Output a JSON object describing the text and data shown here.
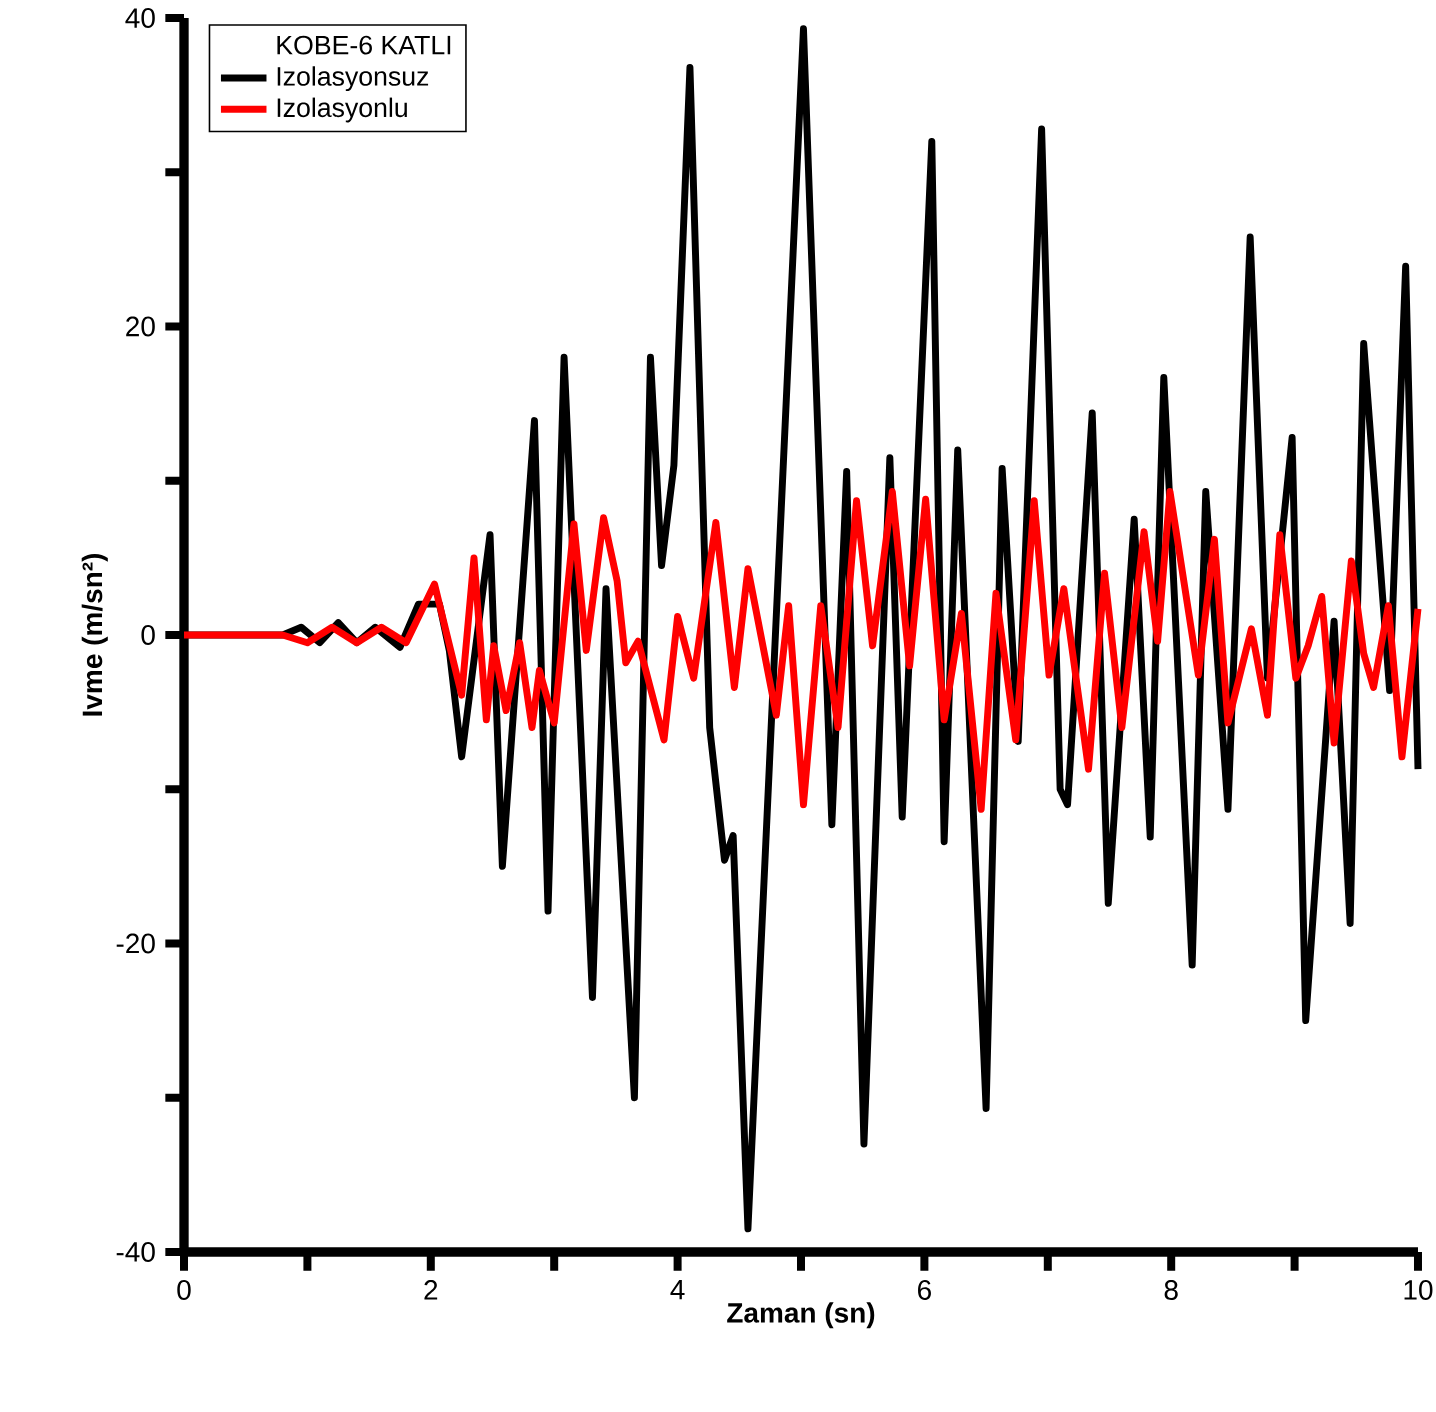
{
  "chart_data": {
    "type": "line",
    "xlabel": "Zaman (sn)",
    "ylabel": "Ivme (m/sn²)",
    "legend_title": "KOBE-6 KATLI",
    "legend": "top left",
    "grid": false,
    "line_style": "solid",
    "marker": "none",
    "xlim": [
      0,
      10
    ],
    "ylim": [
      -40,
      40
    ],
    "xticks": [
      0,
      {
        "value": 1,
        "label": null
      },
      2,
      {
        "value": 3,
        "label": null
      },
      4,
      {
        "value": 5,
        "label": null
      },
      6,
      {
        "value": 7,
        "label": null
      },
      8,
      {
        "value": 9,
        "label": null
      },
      10
    ],
    "yticks": [
      -40,
      {
        "value": -30,
        "label": null
      },
      -20,
      {
        "value": -10,
        "label": null
      },
      0,
      {
        "value": 10,
        "label": null
      },
      20,
      {
        "value": 30,
        "label": null
      },
      40
    ],
    "series": [
      {
        "name": "Izolasyonsuz",
        "color": "#000000",
        "x": [
          0,
          0.8,
          0.95,
          1.1,
          1.25,
          1.4,
          1.55,
          1.75,
          1.9,
          2.07,
          2.15,
          2.25,
          2.48,
          2.58,
          2.84,
          2.95,
          3.08,
          3.31,
          3.42,
          3.65,
          3.78,
          3.87,
          3.97,
          4.1,
          4.26,
          4.38,
          4.45,
          4.57,
          5.02,
          5.25,
          5.37,
          5.51,
          5.72,
          5.82,
          6.06,
          6.16,
          6.27,
          6.5,
          6.63,
          6.76,
          6.95,
          7.1,
          7.16,
          7.36,
          7.49,
          7.7,
          7.83,
          7.94,
          8.17,
          8.28,
          8.46,
          8.64,
          8.78,
          8.98,
          9.09,
          9.32,
          9.45,
          9.56,
          9.77,
          9.9,
          10
        ],
        "values": [
          0,
          0,
          0.5,
          -0.5,
          0.8,
          -0.5,
          0.5,
          -0.8,
          2,
          2,
          -1,
          -7.9,
          6.5,
          -15,
          13.9,
          -17.9,
          18,
          -23.5,
          3,
          -30,
          18,
          4.5,
          11,
          36.8,
          -6,
          -14.6,
          -13,
          -38.5,
          39.3,
          -12.3,
          10.6,
          -33,
          11.5,
          -11.8,
          32,
          -13.4,
          12,
          -30.7,
          10.8,
          -6.9,
          32.8,
          -10,
          -11,
          14.4,
          -17.4,
          7.5,
          -13.1,
          16.7,
          -21.4,
          9.3,
          -11.3,
          25.8,
          -2.8,
          12.8,
          -25,
          0.9,
          -18.7,
          18.9,
          -3.6,
          23.9,
          -8.7
        ]
      },
      {
        "name": "Izolasyonlu",
        "color": "#ff0000",
        "x": [
          0,
          0.8,
          1.0,
          1.2,
          1.4,
          1.6,
          1.8,
          2.03,
          2.25,
          2.35,
          2.45,
          2.51,
          2.61,
          2.72,
          2.82,
          2.88,
          3.0,
          3.16,
          3.26,
          3.4,
          3.51,
          3.58,
          3.68,
          3.89,
          4.0,
          4.13,
          4.31,
          4.46,
          4.57,
          4.8,
          4.9,
          5.02,
          5.16,
          5.3,
          5.45,
          5.58,
          5.74,
          5.88,
          6.01,
          6.16,
          6.3,
          6.46,
          6.58,
          6.74,
          6.89,
          7.01,
          7.13,
          7.33,
          7.46,
          7.6,
          7.78,
          7.89,
          7.99,
          8.22,
          8.35,
          8.46,
          8.65,
          8.78,
          8.88,
          9.01,
          9.11,
          9.22,
          9.32,
          9.46,
          9.56,
          9.64,
          9.76,
          9.87,
          10
        ],
        "values": [
          0,
          0,
          -0.5,
          0.5,
          -0.5,
          0.5,
          -0.5,
          3.3,
          -3.9,
          5,
          -5.5,
          -0.7,
          -4.9,
          -0.5,
          -6,
          -2.3,
          -5.7,
          7.2,
          -1,
          7.6,
          3.5,
          -1.8,
          -0.4,
          -6.8,
          1.2,
          -2.8,
          7.3,
          -3.4,
          4.3,
          -5.2,
          1.9,
          -11,
          1.9,
          -6,
          8.7,
          -0.7,
          9.3,
          -2,
          8.8,
          -5.5,
          1.4,
          -11.3,
          2.7,
          -6.8,
          8.7,
          -2.6,
          3,
          -8.7,
          4,
          -6,
          6.7,
          -0.4,
          9.3,
          -2.6,
          6.2,
          -5.7,
          0.4,
          -5.2,
          6.5,
          -2.8,
          -0.7,
          2.5,
          -7,
          4.8,
          -1.2,
          -3.4,
          1.9,
          -7.9,
          1.7
        ]
      }
    ]
  }
}
